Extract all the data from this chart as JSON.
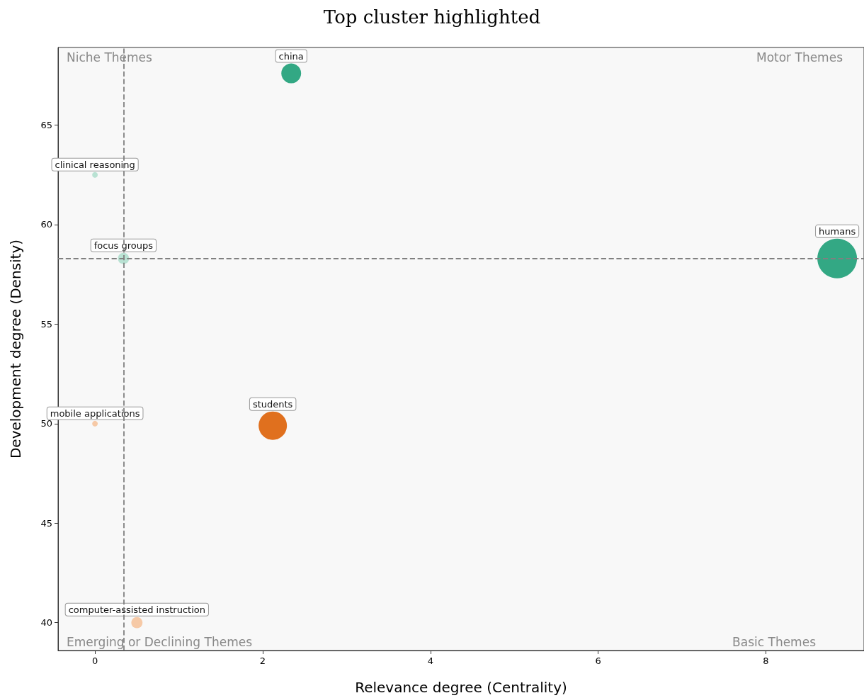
{
  "chart_data": {
    "type": "bubble",
    "title": "Top cluster highlighted",
    "xlabel": "Relevance degree (Centrality)",
    "ylabel": "Development degree (Density)",
    "xlim": [
      -0.44,
      9.17
    ],
    "xticks": [
      0,
      2,
      4,
      6,
      8
    ],
    "ylim": [
      38.6,
      68.9
    ],
    "yticks": [
      40,
      45,
      50,
      55,
      60,
      65
    ],
    "grid": false,
    "legend": false,
    "marker": "circle",
    "series": [
      {
        "name": "china",
        "color": "#33a884",
        "x": [
          2.34
        ],
        "values": [
          67.6
        ],
        "sizes": [
          0.25
        ]
      },
      {
        "name": "clinical reasoning",
        "color": "#b9e2d3",
        "x": [
          0.0
        ],
        "values": [
          62.5
        ],
        "sizes": [
          0.02
        ]
      },
      {
        "name": "focus groups",
        "color": "#b9e2d3",
        "x": [
          0.34
        ],
        "values": [
          58.3
        ],
        "sizes": [
          0.08
        ]
      },
      {
        "name": "humans",
        "color": "#33a884",
        "x": [
          8.85
        ],
        "values": [
          58.3
        ],
        "sizes": [
          1
        ]
      },
      {
        "name": "mobile applications",
        "color": "#f6c9a6",
        "x": [
          0.0
        ],
        "values": [
          50.0
        ],
        "sizes": [
          0.02
        ]
      },
      {
        "name": "students",
        "color": "#e0701e",
        "x": [
          2.12
        ],
        "values": [
          49.9
        ],
        "sizes": [
          0.51
        ]
      },
      {
        "name": "computer-assisted instruction",
        "color": "#f6c9a6",
        "x": [
          0.5
        ],
        "values": [
          40.0
        ],
        "sizes": [
          0.08
        ]
      }
    ],
    "ref_lines": [
      {
        "axis": "x",
        "value": 0.34,
        "color": "#808080",
        "line_style": "dashed"
      },
      {
        "axis": "y",
        "value": 58.3,
        "color": "#808080",
        "line_style": "dashed"
      }
    ],
    "annotations": [
      "Niche Themes",
      "Motor Themes",
      "Emerging or Declining Themes",
      "Basic Themes"
    ]
  }
}
